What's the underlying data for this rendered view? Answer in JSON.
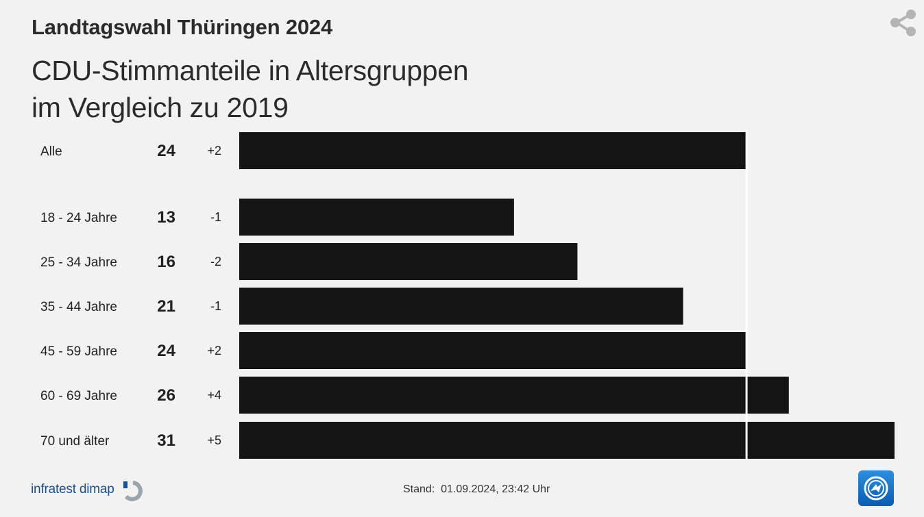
{
  "header": {
    "title": "Landtagswahl Thüringen 2024",
    "subtitle_line1": "CDU-Stimmanteile in Altersgruppen",
    "subtitle_line2": "im Vergleich zu 2019"
  },
  "footer": {
    "source": "infratest dimap",
    "stand": "Stand:  01.09.2024, 23:42 Uhr"
  },
  "icons": {
    "share": "share-icon",
    "source_logo": "infratest-dimap-logo",
    "brand_logo": "tagesschau-logo"
  },
  "colors": {
    "bar": "#141414",
    "background": "#f2f2f2",
    "reference_line": "#ffffff",
    "brand": "#0a5cb2"
  },
  "chart_data": {
    "type": "bar",
    "orientation": "horizontal",
    "title": "CDU-Stimmanteile in Altersgruppen im Vergleich zu 2019",
    "categories": [
      "Alle",
      "18 - 24 Jahre",
      "25 - 34 Jahre",
      "35 - 44 Jahre",
      "45 - 59 Jahre",
      "60 - 69 Jahre",
      "70 und älter"
    ],
    "values": [
      24,
      13,
      16,
      21,
      24,
      26,
      31
    ],
    "value_labels": [
      "24",
      "13",
      "16",
      "21",
      "24",
      "26",
      "31"
    ],
    "diffs": [
      "+2",
      "-1",
      "-2",
      "-1",
      "+2",
      "+4",
      "+5"
    ],
    "reference_line": 24,
    "xlim": [
      0,
      31
    ],
    "grid": false
  }
}
